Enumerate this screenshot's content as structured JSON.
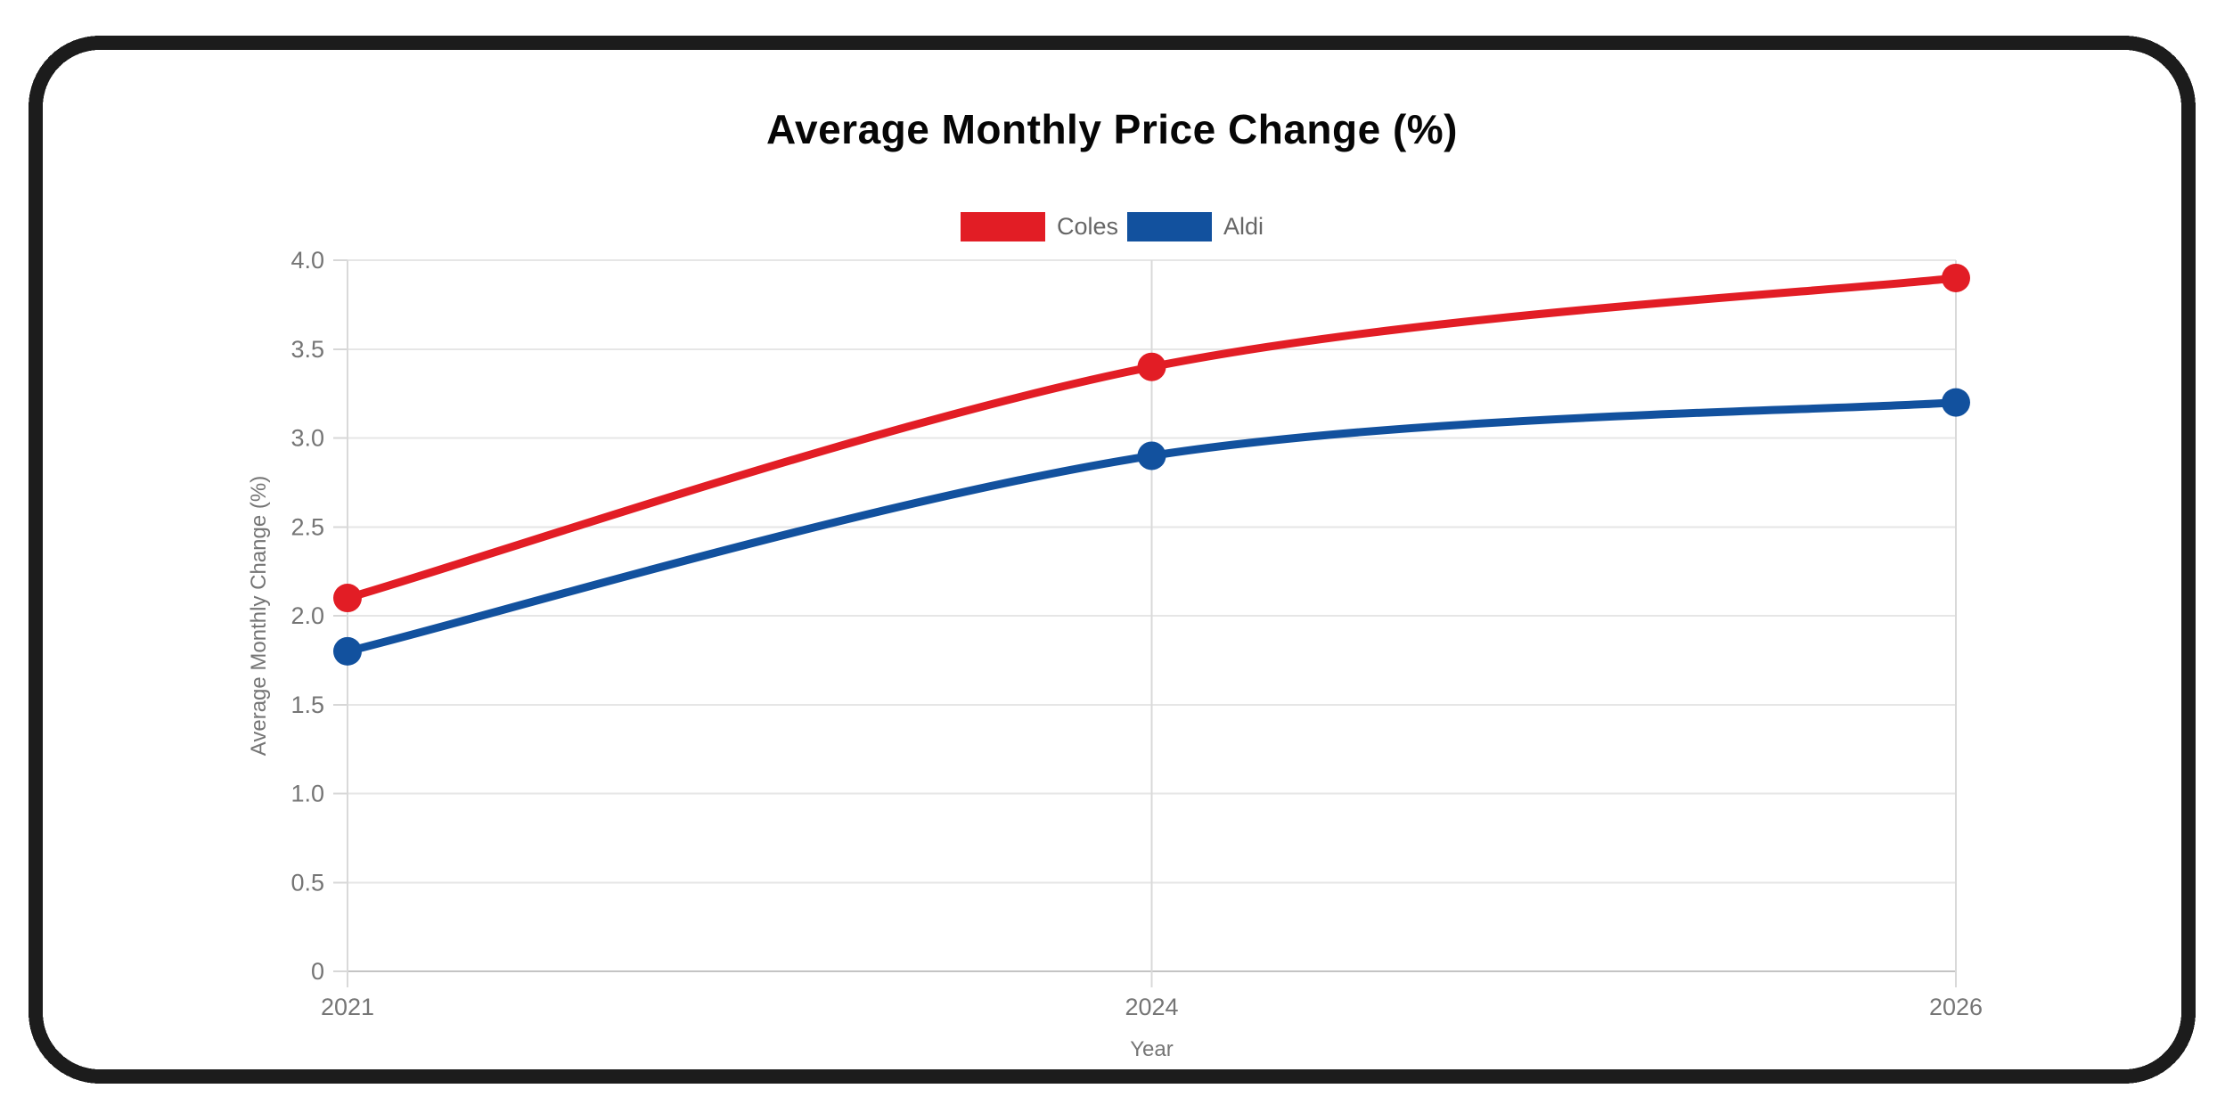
{
  "page": {
    "background_color": "#ffffff",
    "frame_color": "#1c1c1c"
  },
  "chart_data": {
    "type": "line",
    "title": "Average Monthly Price Change (%)",
    "categories": [
      "2021",
      "2024",
      "2026"
    ],
    "series": [
      {
        "name": "Coles",
        "color": "#e21d25",
        "values": [
          2.1,
          3.4,
          3.9
        ]
      },
      {
        "name": "Aldi",
        "color": "#12519e",
        "values": [
          1.8,
          2.9,
          3.2
        ]
      }
    ],
    "xlabel": "Year",
    "ylabel": "Average Monthly Change (%)",
    "ylim": [
      0,
      4
    ],
    "yticks": [
      0,
      0.5,
      1,
      1.5,
      2,
      2.5,
      3,
      3.5,
      4
    ],
    "ytick_labels": [
      "0",
      "0.5",
      "1.0",
      "1.5",
      "2.0",
      "2.5",
      "3.0",
      "3.5",
      "4.0"
    ],
    "grid": true,
    "legend_position": "top",
    "marker": "circle",
    "tick_text_color": "#757575"
  }
}
